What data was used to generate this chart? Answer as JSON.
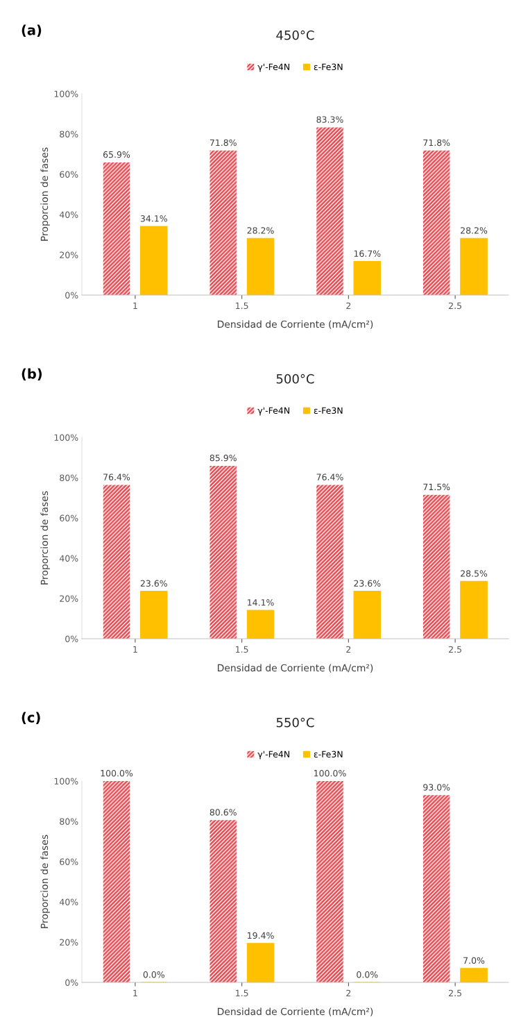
{
  "chart_data": [
    {
      "type": "bar",
      "title": "450°C",
      "annotations": [
        "(a)"
      ],
      "xlabel": "Densidad de Corriente (mA/cm²)",
      "ylabel": "Proporcion de fases",
      "categories": [
        "1",
        "1.5",
        "2",
        "2.5"
      ],
      "ylim": [
        0,
        100
      ],
      "yticks": [
        {
          "value": 0,
          "label": "0%"
        },
        {
          "value": 20,
          "label": "20%"
        },
        {
          "value": 40,
          "label": "40%"
        },
        {
          "value": 60,
          "label": "60%"
        },
        {
          "value": 80,
          "label": "80%"
        },
        {
          "value": 100,
          "label": "100%"
        }
      ],
      "legend": "top",
      "grid": false,
      "series": [
        {
          "name": "γ'-Fe4N",
          "color": "#e8474e",
          "values": [
            65.9,
            71.8,
            83.3,
            71.8
          ],
          "value_labels": [
            "65.9%",
            "71.8%",
            "83.3%",
            "71.8%"
          ]
        },
        {
          "name": "ε-Fe3N",
          "color": "#ffc000",
          "values": [
            34.1,
            28.2,
            16.7,
            28.2
          ],
          "value_labels": [
            "34.1%",
            "28.2%",
            "16.7%",
            "28.2%"
          ]
        }
      ]
    },
    {
      "type": "bar",
      "title": "500°C",
      "annotations": [
        "(b)"
      ],
      "xlabel": "Densidad de Corriente (mA/cm²)",
      "ylabel": "Proporcion de fases",
      "categories": [
        "1",
        "1.5",
        "2",
        "2.5"
      ],
      "ylim": [
        0,
        100
      ],
      "yticks": [
        {
          "value": 0,
          "label": "0%"
        },
        {
          "value": 20,
          "label": "20%"
        },
        {
          "value": 40,
          "label": "40%"
        },
        {
          "value": 60,
          "label": "60%"
        },
        {
          "value": 80,
          "label": "80%"
        },
        {
          "value": 100,
          "label": "100%"
        }
      ],
      "legend": "top",
      "grid": false,
      "series": [
        {
          "name": "γ'-Fe4N",
          "color": "#e8474e",
          "values": [
            76.4,
            85.9,
            76.4,
            71.5
          ],
          "value_labels": [
            "76.4%",
            "85.9%",
            "76.4%",
            "71.5%"
          ]
        },
        {
          "name": "ε-Fe3N",
          "color": "#ffc000",
          "values": [
            23.6,
            14.1,
            23.6,
            28.5
          ],
          "value_labels": [
            "23.6%",
            "14.1%",
            "23.6%",
            "28.5%"
          ]
        }
      ]
    },
    {
      "type": "bar",
      "title": "550°C",
      "annotations": [
        "(c)"
      ],
      "xlabel": "Densidad de Corriente (mA/cm²)",
      "ylabel": "Proporcion de fases",
      "categories": [
        "1",
        "1.5",
        "2",
        "2.5"
      ],
      "ylim": [
        0,
        100
      ],
      "yticks": [
        {
          "value": 0,
          "label": "0%"
        },
        {
          "value": 20,
          "label": "20%"
        },
        {
          "value": 40,
          "label": "40%"
        },
        {
          "value": 60,
          "label": "60%"
        },
        {
          "value": 80,
          "label": "80%"
        },
        {
          "value": 100,
          "label": "100%"
        }
      ],
      "legend": "top",
      "grid": false,
      "series": [
        {
          "name": "γ'-Fe4N",
          "color": "#e8474e",
          "values": [
            100.0,
            80.6,
            100.0,
            93.0
          ],
          "value_labels": [
            "100.0%",
            "80.6%",
            "100.0%",
            "93.0%"
          ]
        },
        {
          "name": "ε-Fe3N",
          "color": "#ffc000",
          "values": [
            0.0,
            19.4,
            0.0,
            7.0
          ],
          "value_labels": [
            "0.0%",
            "19.4%",
            "0.0%",
            "7.0%"
          ]
        }
      ]
    }
  ]
}
